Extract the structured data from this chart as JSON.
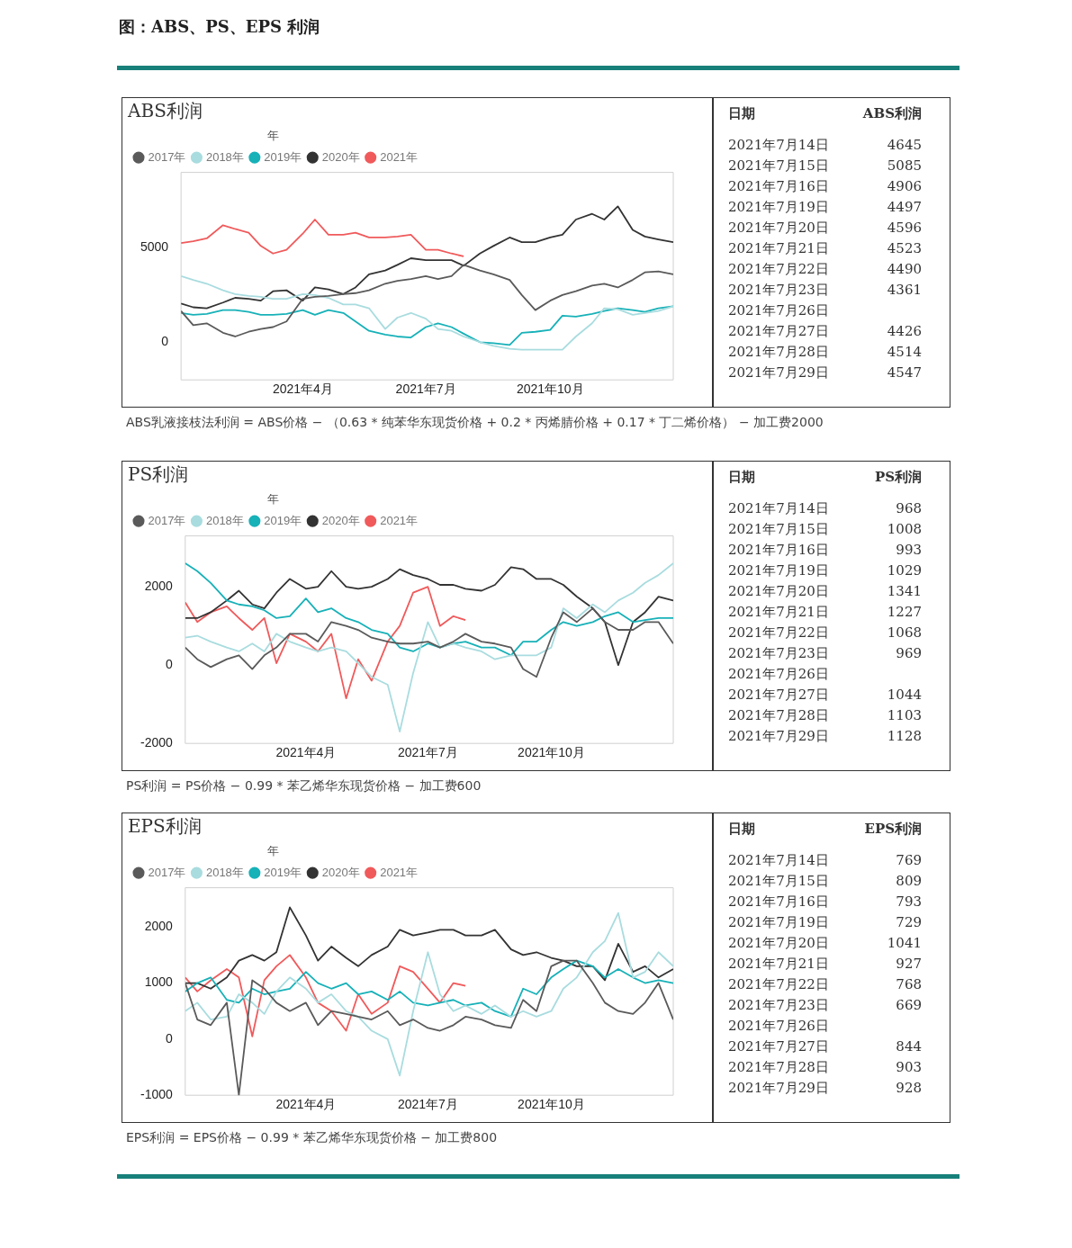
{
  "chart_data": [
    {
      "type": "other",
      "title": "图：ABS、PS、EPS 利润"
    },
    {
      "type": "line",
      "title": "ABS利润",
      "legend_title": "年",
      "legend": "top left",
      "marker": "none",
      "line_style": "solid",
      "grid": false,
      "x": [
        "2021-01-01",
        "2021-01-10",
        "2021-01-20",
        "2021-02-01",
        "2021-02-10",
        "2021-02-20",
        "2021-03-01",
        "2021-03-10",
        "2021-03-20",
        "2021-04-01",
        "2021-04-10",
        "2021-04-20",
        "2021-05-01",
        "2021-05-10",
        "2021-05-20",
        "2021-06-01",
        "2021-06-10",
        "2021-06-20",
        "2021-07-01",
        "2021-07-10",
        "2021-07-20",
        "2021-07-29",
        "2021-08-10",
        "2021-08-20",
        "2021-09-01",
        "2021-09-10",
        "2021-09-20",
        "2021-10-01",
        "2021-10-10",
        "2021-10-20",
        "2021-11-01",
        "2021-11-10",
        "2021-11-20",
        "2021-12-01",
        "2021-12-10",
        "2021-12-20",
        "2021-12-31"
      ],
      "xlim": [
        "2021-01-01",
        "2021-12-31"
      ],
      "xticks": [
        {
          "value": "2021-04-01",
          "label": "2021年4月"
        },
        {
          "value": "2021-07-01",
          "label": "2021年7月"
        },
        {
          "value": "2021-10-01",
          "label": "2021年10月"
        }
      ],
      "ylim": [
        -2000,
        9000
      ],
      "yticks": [
        0,
        5000
      ],
      "series": [
        {
          "name": "2017年",
          "color": "#5a5a5a",
          "values": [
            1650,
            900,
            1000,
            500,
            300,
            550,
            700,
            800,
            1100,
            2300,
            2400,
            2450,
            2550,
            2600,
            2750,
            3100,
            3250,
            3350,
            3500,
            3350,
            3500,
            4100,
            3800,
            3600,
            3300,
            2500,
            1700,
            2200,
            2500,
            2700,
            3000,
            3100,
            2900,
            3300,
            3700,
            3750,
            3600
          ]
        },
        {
          "name": "2018年",
          "color": "#a9dcdf",
          "values": [
            3500,
            3300,
            3100,
            2750,
            2550,
            2450,
            2400,
            2300,
            2300,
            2550,
            2500,
            2350,
            2000,
            2000,
            1800,
            700,
            1300,
            1550,
            1250,
            700,
            600,
            300,
            0,
            -200,
            -350,
            -400,
            -400,
            -400,
            -400,
            300,
            1000,
            1800,
            1750,
            1450,
            1550,
            1650,
            1900
          ]
        },
        {
          "name": "2019年",
          "color": "#17b1b8",
          "values": [
            1550,
            1450,
            1500,
            1700,
            1700,
            1600,
            1450,
            1450,
            1500,
            1700,
            1450,
            1700,
            1550,
            1100,
            600,
            400,
            300,
            250,
            800,
            1000,
            800,
            450,
            0,
            -50,
            -150,
            500,
            550,
            650,
            1400,
            1350,
            1500,
            1650,
            1800,
            1700,
            1600,
            1800,
            1900
          ]
        },
        {
          "name": "2020年",
          "color": "#333333",
          "values": [
            2050,
            1850,
            1800,
            2100,
            2350,
            2300,
            2200,
            2700,
            2750,
            2200,
            2900,
            2800,
            2550,
            2900,
            3600,
            3800,
            4100,
            4450,
            4350,
            4350,
            4350,
            4050,
            4700,
            5100,
            5550,
            5300,
            5300,
            5550,
            5700,
            6500,
            6800,
            6500,
            7200,
            5950,
            5600,
            5450,
            5300
          ]
        },
        {
          "name": "2021年",
          "color": "#f05a5b",
          "values": [
            5250,
            5350,
            5500,
            6200,
            6000,
            5800,
            5100,
            4700,
            4900,
            5750,
            6500,
            5700,
            5700,
            5800,
            5550,
            5550,
            5600,
            5700,
            4900,
            4900,
            4700,
            4550,
            null,
            null,
            null,
            null,
            null,
            null,
            null,
            null,
            null,
            null,
            null,
            null,
            null,
            null,
            null
          ]
        }
      ],
      "annotations": [
        "ABS乳液接枝法利润 = ABS价格 − （0.63 * 纯苯华东现货价格 + 0.2 * 丙烯腈价格 + 0.17 * 丁二烯价格） − 加工费2000"
      ]
    },
    {
      "type": "other",
      "xlabel": "日期",
      "ylabel": "ABS利润",
      "data_labels": true,
      "categories": [
        "2021年7月14日",
        "2021年7月15日",
        "2021年7月16日",
        "2021年7月19日",
        "2021年7月20日",
        "2021年7月21日",
        "2021年7月22日",
        "2021年7月23日",
        "2021年7月26日",
        "2021年7月27日",
        "2021年7月28日",
        "2021年7月29日"
      ],
      "values": [
        4645,
        5085,
        4906,
        4497,
        4596,
        4523,
        4490,
        4361,
        null,
        4426,
        4514,
        4547
      ]
    },
    {
      "type": "line",
      "title": "PS利润",
      "legend_title": "年",
      "legend": "top left",
      "marker": "none",
      "line_style": "solid",
      "grid": false,
      "x": [
        "2021-01-01",
        "2021-01-10",
        "2021-01-20",
        "2021-02-01",
        "2021-02-10",
        "2021-02-20",
        "2021-03-01",
        "2021-03-10",
        "2021-03-20",
        "2021-04-01",
        "2021-04-10",
        "2021-04-20",
        "2021-05-01",
        "2021-05-10",
        "2021-05-20",
        "2021-06-01",
        "2021-06-10",
        "2021-06-20",
        "2021-07-01",
        "2021-07-10",
        "2021-07-20",
        "2021-07-29",
        "2021-08-10",
        "2021-08-20",
        "2021-09-01",
        "2021-09-10",
        "2021-09-20",
        "2021-10-01",
        "2021-10-10",
        "2021-10-20",
        "2021-11-01",
        "2021-11-10",
        "2021-11-20",
        "2021-12-01",
        "2021-12-10",
        "2021-12-20",
        "2021-12-31"
      ],
      "xlim": [
        "2021-01-01",
        "2021-12-31"
      ],
      "xticks": [
        {
          "value": "2021-04-01",
          "label": "2021年4月"
        },
        {
          "value": "2021-07-01",
          "label": "2021年7月"
        },
        {
          "value": "2021-10-01",
          "label": "2021年10月"
        }
      ],
      "ylim": [
        -2000,
        3300
      ],
      "yticks": [
        -2000,
        0,
        2000
      ],
      "series": [
        {
          "name": "2017年",
          "color": "#5a5a5a",
          "values": [
            450,
            150,
            -50,
            150,
            250,
            -100,
            250,
            450,
            800,
            800,
            600,
            1100,
            1000,
            900,
            700,
            600,
            550,
            550,
            600,
            450,
            600,
            800,
            600,
            550,
            450,
            -100,
            -300,
            700,
            1350,
            1100,
            1450,
            1100,
            900,
            900,
            1100,
            1100,
            550
          ]
        },
        {
          "name": "2018年",
          "color": "#a9dcdf",
          "values": [
            700,
            750,
            600,
            450,
            350,
            550,
            350,
            800,
            600,
            450,
            350,
            450,
            350,
            50,
            -300,
            -500,
            -1700,
            -200,
            1100,
            450,
            550,
            450,
            350,
            150,
            250,
            250,
            250,
            450,
            1450,
            1200,
            1550,
            1350,
            1650,
            1850,
            2100,
            2300,
            2600
          ]
        },
        {
          "name": "2019年",
          "color": "#17b1b8",
          "values": [
            2600,
            2400,
            2100,
            1650,
            1550,
            1500,
            1400,
            1200,
            1250,
            1700,
            1350,
            1450,
            1200,
            1100,
            900,
            800,
            450,
            350,
            550,
            450,
            550,
            600,
            450,
            450,
            250,
            600,
            600,
            900,
            1100,
            1000,
            1100,
            1250,
            1350,
            1100,
            1150,
            1200,
            1200
          ]
        },
        {
          "name": "2020年",
          "color": "#333333",
          "values": [
            1200,
            1200,
            1350,
            1650,
            1900,
            1550,
            1450,
            1850,
            2200,
            1950,
            2000,
            2400,
            2000,
            1950,
            2000,
            2200,
            2450,
            2300,
            2200,
            2050,
            2050,
            1950,
            1900,
            2050,
            2500,
            2450,
            2200,
            2200,
            2050,
            1750,
            1450,
            1100,
            0,
            1100,
            1350,
            1750,
            1650
          ]
        },
        {
          "name": "2021年",
          "color": "#f05a5b",
          "values": [
            1600,
            1100,
            1350,
            1500,
            1200,
            900,
            1200,
            50,
            800,
            600,
            350,
            800,
            -850,
            150,
            -400,
            600,
            1000,
            1850,
            2000,
            1000,
            1250,
            1150,
            null,
            null,
            null,
            null,
            null,
            null,
            null,
            null,
            null,
            null,
            null,
            null,
            null,
            null,
            null
          ]
        }
      ],
      "annotations": [
        "PS利润 = PS价格 − 0.99 * 苯乙烯华东现货价格 − 加工费600"
      ]
    },
    {
      "type": "other",
      "xlabel": "日期",
      "ylabel": "PS利润",
      "data_labels": true,
      "categories": [
        "2021年7月14日",
        "2021年7月15日",
        "2021年7月16日",
        "2021年7月19日",
        "2021年7月20日",
        "2021年7月21日",
        "2021年7月22日",
        "2021年7月23日",
        "2021年7月26日",
        "2021年7月27日",
        "2021年7月28日",
        "2021年7月29日"
      ],
      "values": [
        968,
        1008,
        993,
        1029,
        1341,
        1227,
        1068,
        969,
        null,
        1044,
        1103,
        1128
      ]
    },
    {
      "type": "line",
      "title": "EPS利润",
      "legend_title": "年",
      "legend": "top left",
      "marker": "none",
      "line_style": "solid",
      "grid": false,
      "x": [
        "2021-01-01",
        "2021-01-10",
        "2021-01-20",
        "2021-02-01",
        "2021-02-10",
        "2021-02-20",
        "2021-03-01",
        "2021-03-10",
        "2021-03-20",
        "2021-04-01",
        "2021-04-10",
        "2021-04-20",
        "2021-05-01",
        "2021-05-10",
        "2021-05-20",
        "2021-06-01",
        "2021-06-10",
        "2021-06-20",
        "2021-07-01",
        "2021-07-10",
        "2021-07-20",
        "2021-07-29",
        "2021-08-10",
        "2021-08-20",
        "2021-09-01",
        "2021-09-10",
        "2021-09-20",
        "2021-10-01",
        "2021-10-10",
        "2021-10-20",
        "2021-11-01",
        "2021-11-10",
        "2021-11-20",
        "2021-12-01",
        "2021-12-10",
        "2021-12-20",
        "2021-12-31"
      ],
      "xlim": [
        "2021-01-01",
        "2021-12-31"
      ],
      "xticks": [
        {
          "value": "2021-04-01",
          "label": "2021年4月"
        },
        {
          "value": "2021-07-01",
          "label": "2021年7月"
        },
        {
          "value": "2021-10-01",
          "label": "2021年10月"
        }
      ],
      "ylim": [
        -1000,
        2700
      ],
      "yticks": [
        -1000,
        0,
        1000,
        2000
      ],
      "series": [
        {
          "name": "2017年",
          "color": "#5a5a5a",
          "values": [
            1000,
            350,
            250,
            650,
            -1000,
            1050,
            900,
            650,
            500,
            650,
            250,
            500,
            450,
            400,
            350,
            500,
            250,
            350,
            200,
            150,
            250,
            400,
            350,
            250,
            200,
            700,
            500,
            1300,
            1400,
            1400,
            1000,
            650,
            500,
            450,
            650,
            1000,
            350
          ]
        },
        {
          "name": "2018年",
          "color": "#a9dcdf",
          "values": [
            500,
            650,
            350,
            400,
            800,
            650,
            450,
            850,
            1100,
            900,
            650,
            800,
            500,
            400,
            150,
            0,
            -650,
            500,
            1550,
            800,
            500,
            600,
            450,
            600,
            400,
            500,
            400,
            500,
            900,
            1100,
            1550,
            1750,
            2250,
            1100,
            1200,
            1550,
            1300
          ]
        },
        {
          "name": "2019年",
          "color": "#17b1b8",
          "values": [
            850,
            1000,
            1100,
            700,
            650,
            900,
            800,
            850,
            900,
            1200,
            1000,
            900,
            1000,
            800,
            850,
            700,
            850,
            650,
            600,
            650,
            700,
            600,
            650,
            500,
            400,
            900,
            800,
            1100,
            1250,
            1400,
            1300,
            1100,
            1250,
            1100,
            1000,
            1050,
            1000
          ]
        },
        {
          "name": "2020年",
          "color": "#333333",
          "values": [
            1000,
            1000,
            900,
            1100,
            1400,
            1500,
            1400,
            1550,
            2350,
            1850,
            1400,
            1650,
            1450,
            1300,
            1500,
            1650,
            1950,
            1850,
            1900,
            1950,
            1950,
            1850,
            1850,
            1950,
            1600,
            1500,
            1550,
            1450,
            1400,
            1300,
            1300,
            1050,
            1700,
            1200,
            1300,
            1100,
            1250
          ]
        },
        {
          "name": "2021年",
          "color": "#f05a5b",
          "values": [
            1100,
            850,
            1050,
            1250,
            1100,
            50,
            1050,
            1300,
            1500,
            1100,
            650,
            500,
            150,
            800,
            450,
            650,
            1300,
            1200,
            900,
            650,
            1000,
            950,
            null,
            null,
            null,
            null,
            null,
            null,
            null,
            null,
            null,
            null,
            null,
            null,
            null,
            null,
            null
          ]
        }
      ],
      "annotations": [
        "EPS利润 = EPS价格 − 0.99 * 苯乙烯华东现货价格 − 加工费800"
      ]
    },
    {
      "type": "other",
      "xlabel": "日期",
      "ylabel": "EPS利润",
      "data_labels": true,
      "categories": [
        "2021年7月14日",
        "2021年7月15日",
        "2021年7月16日",
        "2021年7月19日",
        "2021年7月20日",
        "2021年7月21日",
        "2021年7月22日",
        "2021年7月23日",
        "2021年7月26日",
        "2021年7月27日",
        "2021年7月28日",
        "2021年7月29日"
      ],
      "values": [
        769,
        809,
        793,
        729,
        1041,
        927,
        768,
        669,
        null,
        844,
        903,
        928
      ]
    }
  ]
}
